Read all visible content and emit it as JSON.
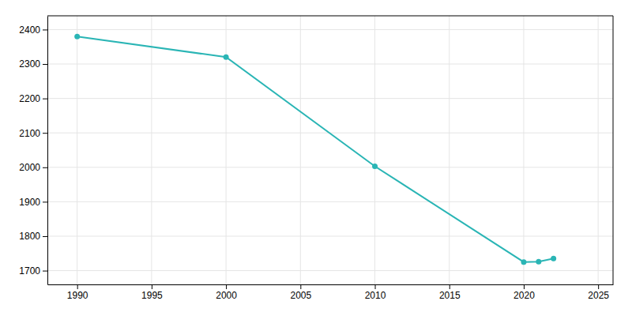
{
  "chart_data": {
    "type": "line",
    "x": [
      1990,
      2000,
      2010,
      2020,
      2021,
      2022
    ],
    "values": [
      2380,
      2320,
      2003,
      1725,
      1726,
      1735
    ],
    "color": "#2ab5b5",
    "marker": "circle",
    "xlim": [
      1988,
      2026
    ],
    "ylim": [
      1660,
      2440
    ],
    "xticks": [
      1990,
      1995,
      2000,
      2005,
      2010,
      2015,
      2020,
      2025
    ],
    "yticks": [
      1700,
      1800,
      1900,
      2000,
      2100,
      2200,
      2300,
      2400
    ],
    "grid": true
  }
}
